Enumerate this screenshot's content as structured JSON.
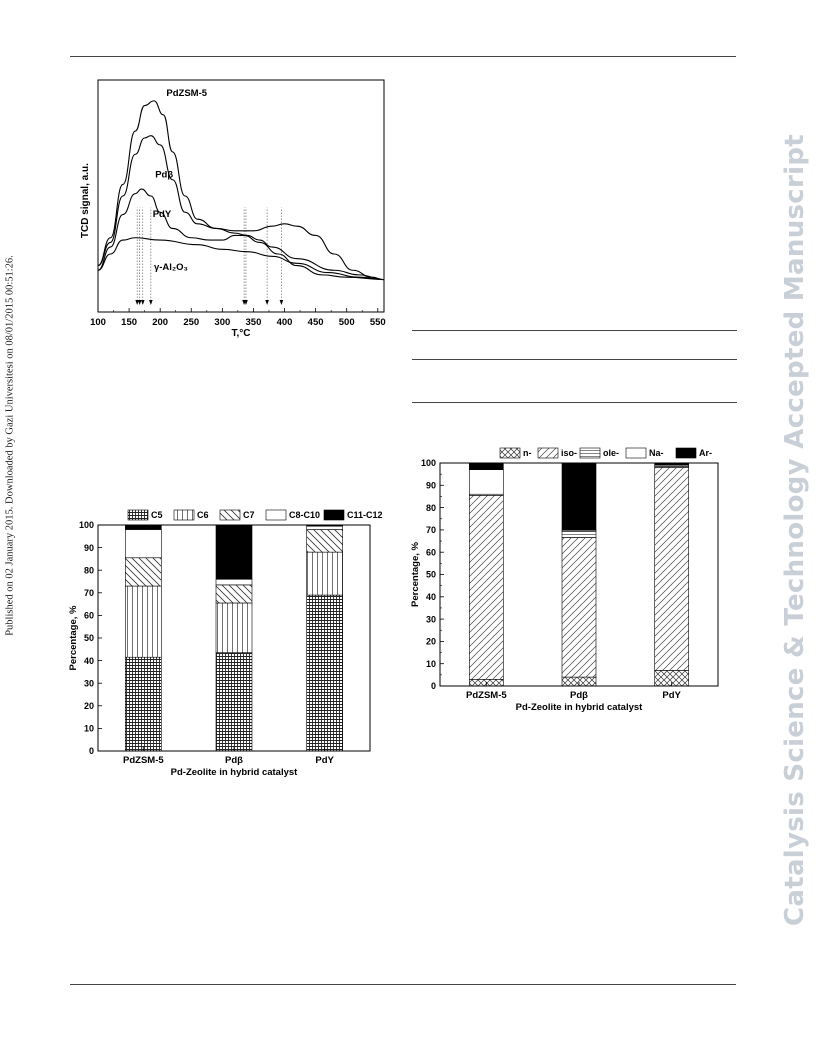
{
  "sidebar_left": "Published on 02 January 2015. Downloaded by Gazi Universitesi on 08/01/2015 00:51:26.",
  "sidebar_right": "Catalysis Science & Technology Accepted Manuscript",
  "chart_data": [
    {
      "type": "line",
      "xlabel": "T,°C",
      "ylabel": "TCD signal, a.u.",
      "xlim": [
        100,
        560
      ],
      "x_ticks": [
        100,
        150,
        200,
        250,
        300,
        350,
        400,
        450,
        500,
        550
      ],
      "series": [
        {
          "name": "PdZSM-5",
          "points": [
            [
              100,
              0.2
            ],
            [
              120,
              0.32
            ],
            [
              140,
              0.55
            ],
            [
              160,
              0.78
            ],
            [
              175,
              0.89
            ],
            [
              190,
              0.91
            ],
            [
              205,
              0.85
            ],
            [
              220,
              0.69
            ],
            [
              240,
              0.5
            ],
            [
              260,
              0.4
            ],
            [
              290,
              0.36
            ],
            [
              320,
              0.34
            ],
            [
              340,
              0.33
            ],
            [
              360,
              0.31
            ],
            [
              380,
              0.28
            ],
            [
              420,
              0.23
            ],
            [
              480,
              0.18
            ],
            [
              520,
              0.16
            ],
            [
              560,
              0.14
            ]
          ]
        },
        {
          "name": "Pdβ",
          "points": [
            [
              100,
              0.2
            ],
            [
              120,
              0.3
            ],
            [
              140,
              0.5
            ],
            [
              160,
              0.68
            ],
            [
              175,
              0.75
            ],
            [
              185,
              0.76
            ],
            [
              200,
              0.72
            ],
            [
              220,
              0.57
            ],
            [
              240,
              0.43
            ],
            [
              260,
              0.38
            ],
            [
              290,
              0.36
            ],
            [
              320,
              0.35
            ],
            [
              350,
              0.35
            ],
            [
              380,
              0.37
            ],
            [
              400,
              0.38
            ],
            [
              420,
              0.37
            ],
            [
              450,
              0.33
            ],
            [
              480,
              0.25
            ],
            [
              510,
              0.18
            ],
            [
              540,
              0.15
            ],
            [
              560,
              0.14
            ]
          ]
        },
        {
          "name": "PdY",
          "points": [
            [
              100,
              0.18
            ],
            [
              120,
              0.28
            ],
            [
              140,
              0.42
            ],
            [
              160,
              0.51
            ],
            [
              170,
              0.53
            ],
            [
              185,
              0.5
            ],
            [
              200,
              0.43
            ],
            [
              220,
              0.36
            ],
            [
              250,
              0.32
            ],
            [
              280,
              0.31
            ],
            [
              300,
              0.31
            ],
            [
              320,
              0.33
            ],
            [
              335,
              0.33
            ],
            [
              360,
              0.3
            ],
            [
              390,
              0.25
            ],
            [
              420,
              0.2
            ],
            [
              460,
              0.16
            ],
            [
              500,
              0.15
            ],
            [
              560,
              0.14
            ]
          ]
        },
        {
          "name": "γ-Al₂O₃",
          "points": [
            [
              100,
              0.18
            ],
            [
              120,
              0.25
            ],
            [
              140,
              0.31
            ],
            [
              160,
              0.32
            ],
            [
              200,
              0.31
            ],
            [
              260,
              0.29
            ],
            [
              300,
              0.27
            ],
            [
              340,
              0.26
            ],
            [
              380,
              0.24
            ],
            [
              420,
              0.21
            ],
            [
              470,
              0.17
            ],
            [
              520,
              0.15
            ],
            [
              560,
              0.14
            ]
          ]
        }
      ],
      "peak_markers": [
        163,
        167,
        172,
        185,
        335,
        338,
        372,
        395
      ]
    },
    {
      "type": "bar",
      "stacked": true,
      "categories": [
        "PdZSM-5",
        "Pdβ",
        "PdY"
      ],
      "xlabel": "Pd-Zeolite in hybrid catalyst",
      "ylabel": "Percentage, %",
      "ylim": [
        0,
        100
      ],
      "y_ticks": [
        0,
        10,
        20,
        30,
        40,
        50,
        60,
        70,
        80,
        90,
        100
      ],
      "legend": [
        "C5",
        "C6",
        "C7",
        "C8-C10",
        "C11-C12"
      ],
      "series": [
        {
          "name": "C5",
          "values": [
            41.5,
            43.5,
            69.0
          ]
        },
        {
          "name": "C6",
          "values": [
            31.5,
            22.0,
            19.0
          ]
        },
        {
          "name": "C7",
          "values": [
            12.5,
            8.0,
            10.0
          ]
        },
        {
          "name": "C8-C10",
          "values": [
            12.5,
            2.5,
            1.5
          ]
        },
        {
          "name": "C11-C12",
          "values": [
            2.0,
            24.0,
            0.5
          ]
        }
      ]
    },
    {
      "type": "bar",
      "stacked": true,
      "categories": [
        "PdZSM-5",
        "Pdβ",
        "PdY"
      ],
      "xlabel": "Pd-Zeolite in hybrid catalyst",
      "ylabel": "Percentage, %",
      "ylim": [
        0,
        100
      ],
      "y_ticks": [
        0,
        10,
        20,
        30,
        40,
        50,
        60,
        70,
        80,
        90,
        100
      ],
      "legend": [
        "n-",
        "iso-",
        "ole-",
        "Na-",
        "Ar-"
      ],
      "series": [
        {
          "name": "n-",
          "values": [
            3.0,
            4.0,
            7.0
          ]
        },
        {
          "name": "iso-",
          "values": [
            82.5,
            62.5,
            91.0
          ]
        },
        {
          "name": "ole-",
          "values": [
            0.5,
            3.0,
            0.5
          ]
        },
        {
          "name": "Na-",
          "values": [
            11.0,
            0.5,
            0.5
          ]
        },
        {
          "name": "Ar-",
          "values": [
            3.0,
            30.0,
            1.0
          ]
        }
      ]
    }
  ]
}
